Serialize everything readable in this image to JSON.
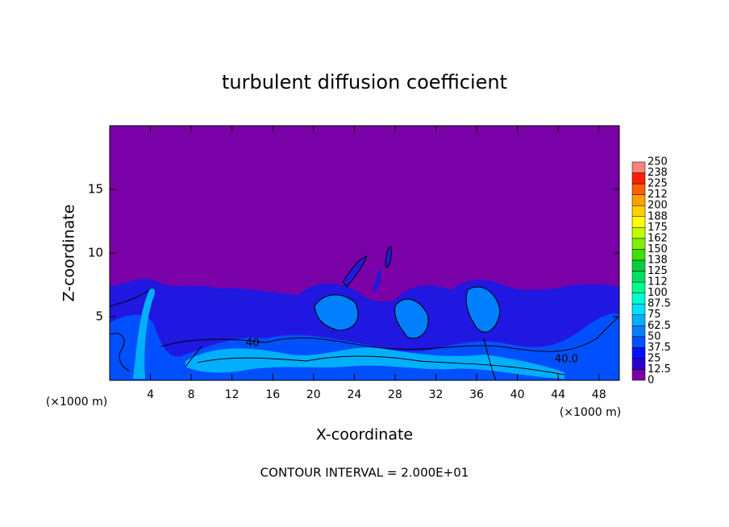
{
  "chart_data": {
    "type": "contour",
    "title": "turbulent diffusion coefficient",
    "xlabel": "X-coordinate",
    "ylabel": "Z-coordinate",
    "axis_unit": "(×1000 m)",
    "xlim": [
      0,
      50
    ],
    "xticks": [
      4,
      8,
      12,
      16,
      20,
      24,
      28,
      32,
      36,
      40,
      44,
      48
    ],
    "ylim": [
      0,
      20
    ],
    "yticks": [
      5,
      10,
      15
    ],
    "contour_labels": [
      "40",
      "40.0"
    ],
    "footnote": "CONTOUR INTERVAL = 2.000E+01",
    "colorbar": {
      "levels": [
        0,
        12.5,
        25,
        37.5,
        50,
        62.5,
        75,
        87.5,
        100,
        {
          "value": 112.5,
          "label": "112"
        },
        125,
        {
          "value": 137.5,
          "label": "138"
        },
        150,
        {
          "value": 162.5,
          "label": "162"
        },
        175,
        {
          "value": 187.5,
          "label": "188"
        },
        200,
        {
          "value": 212.5,
          "label": "212"
        },
        225,
        {
          "value": 237.5,
          "label": "238"
        },
        250
      ],
      "colors": [
        "#7a00a8",
        "#2a00d0",
        "#0010ff",
        "#0050ff",
        "#0080ff",
        "#00b0ff",
        "#00e0ff",
        "#00ffd0",
        "#00ff90",
        "#00e060",
        "#00d040",
        "#40e000",
        "#80f000",
        "#c0ff00",
        "#ffff00",
        "#ffd000",
        "#ffa000",
        "#ff6000",
        "#ff2000",
        "#ff8080"
      ]
    }
  }
}
